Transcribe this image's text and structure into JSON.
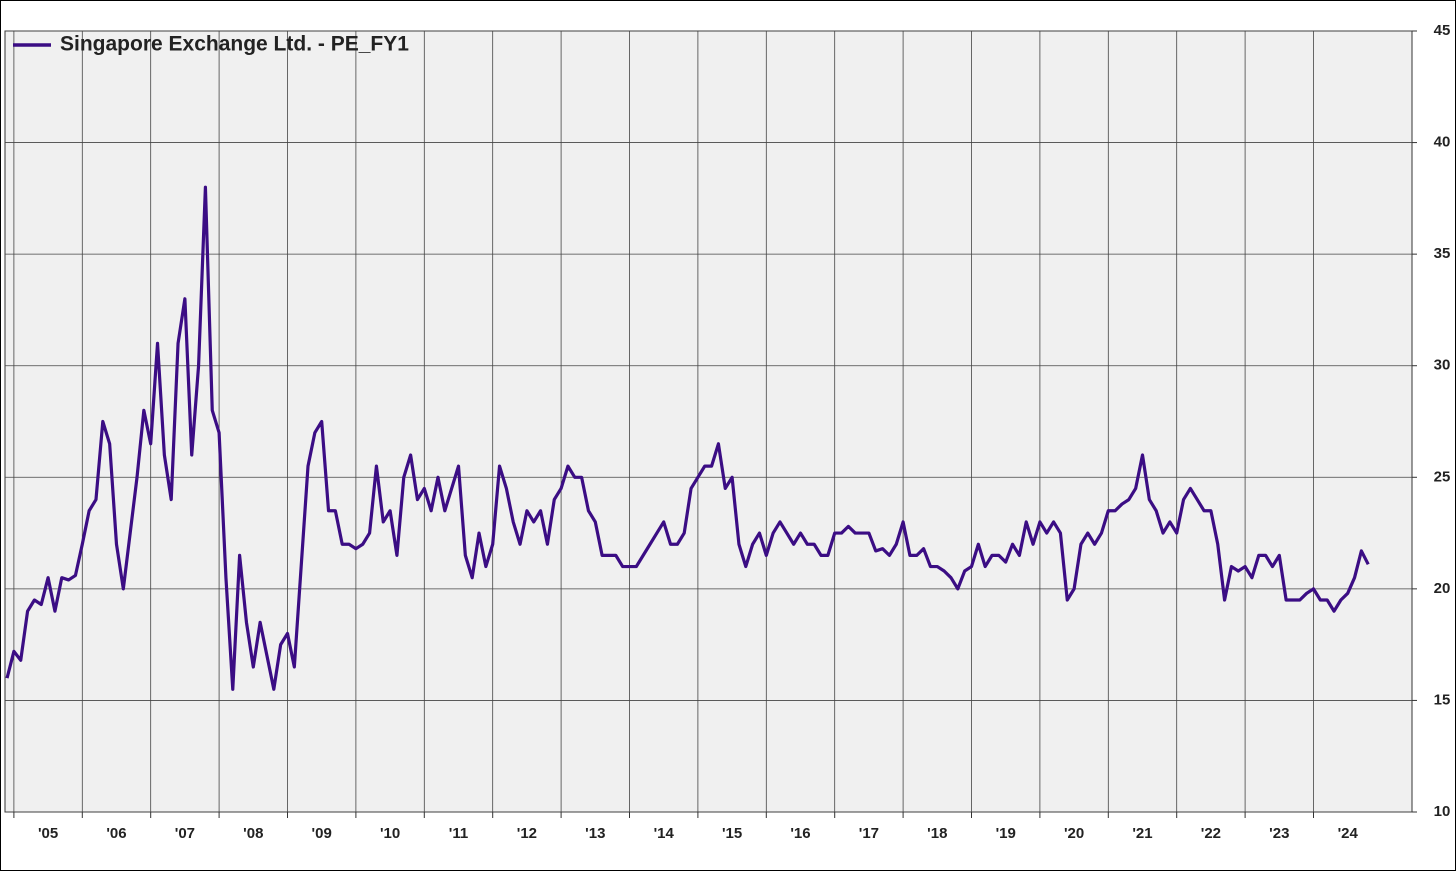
{
  "chart_data": {
    "type": "line",
    "legend": "top-left",
    "grid": true,
    "y_axis_side": "right",
    "xlim": [
      2004.87,
      2025.44
    ],
    "ylim": [
      10,
      45
    ],
    "yticks": [
      10,
      15,
      20,
      25,
      30,
      35,
      40,
      45
    ],
    "xticks": [
      {
        "value": 2005,
        "label": "'05"
      },
      {
        "value": 2006,
        "label": "'06"
      },
      {
        "value": 2007,
        "label": "'07"
      },
      {
        "value": 2008,
        "label": "'08"
      },
      {
        "value": 2009,
        "label": "'09"
      },
      {
        "value": 2010,
        "label": "'10"
      },
      {
        "value": 2011,
        "label": "'11"
      },
      {
        "value": 2012,
        "label": "'12"
      },
      {
        "value": 2013,
        "label": "'13"
      },
      {
        "value": 2014,
        "label": "'14"
      },
      {
        "value": 2015,
        "label": "'15"
      },
      {
        "value": 2016,
        "label": "'16"
      },
      {
        "value": 2017,
        "label": "'17"
      },
      {
        "value": 2018,
        "label": "'18"
      },
      {
        "value": 2019,
        "label": "'19"
      },
      {
        "value": 2020,
        "label": "'20"
      },
      {
        "value": 2021,
        "label": "'21"
      },
      {
        "value": 2022,
        "label": "'22"
      },
      {
        "value": 2023,
        "label": "'23"
      },
      {
        "value": 2024,
        "label": "'24"
      }
    ],
    "x": [
      2004.9,
      2005.0,
      2005.1,
      2005.2,
      2005.3,
      2005.4,
      2005.5,
      2005.6,
      2005.7,
      2005.8,
      2005.9,
      2006.0,
      2006.1,
      2006.2,
      2006.3,
      2006.4,
      2006.5,
      2006.6,
      2006.7,
      2006.8,
      2006.9,
      2007.0,
      2007.1,
      2007.2,
      2007.3,
      2007.4,
      2007.5,
      2007.6,
      2007.7,
      2007.8,
      2007.9,
      2008.0,
      2008.1,
      2008.2,
      2008.3,
      2008.4,
      2008.5,
      2008.6,
      2008.7,
      2008.8,
      2008.9,
      2009.0,
      2009.1,
      2009.2,
      2009.3,
      2009.4,
      2009.5,
      2009.6,
      2009.7,
      2009.8,
      2009.9,
      2010.0,
      2010.1,
      2010.2,
      2010.3,
      2010.4,
      2010.5,
      2010.6,
      2010.7,
      2010.8,
      2010.9,
      2011.0,
      2011.1,
      2011.2,
      2011.3,
      2011.4,
      2011.5,
      2011.6,
      2011.7,
      2011.8,
      2011.9,
      2012.0,
      2012.1,
      2012.2,
      2012.3,
      2012.4,
      2012.5,
      2012.6,
      2012.7,
      2012.8,
      2012.9,
      2013.0,
      2013.1,
      2013.2,
      2013.3,
      2013.4,
      2013.5,
      2013.6,
      2013.7,
      2013.8,
      2013.9,
      2014.0,
      2014.1,
      2014.2,
      2014.3,
      2014.4,
      2014.5,
      2014.6,
      2014.7,
      2014.8,
      2014.9,
      2015.0,
      2015.1,
      2015.2,
      2015.3,
      2015.4,
      2015.5,
      2015.6,
      2015.7,
      2015.8,
      2015.9,
      2016.0,
      2016.1,
      2016.2,
      2016.3,
      2016.4,
      2016.5,
      2016.6,
      2016.7,
      2016.8,
      2016.9,
      2017.0,
      2017.1,
      2017.2,
      2017.3,
      2017.4,
      2017.5,
      2017.6,
      2017.7,
      2017.8,
      2017.9,
      2018.0,
      2018.1,
      2018.2,
      2018.3,
      2018.4,
      2018.5,
      2018.6,
      2018.7,
      2018.8,
      2018.9,
      2019.0,
      2019.1,
      2019.2,
      2019.3,
      2019.4,
      2019.5,
      2019.6,
      2019.7,
      2019.8,
      2019.9,
      2020.0,
      2020.1,
      2020.2,
      2020.3,
      2020.4,
      2020.5,
      2020.6,
      2020.7,
      2020.8,
      2020.9,
      2021.0,
      2021.1,
      2021.2,
      2021.3,
      2021.4,
      2021.5,
      2021.6,
      2021.7,
      2021.8,
      2021.9,
      2022.0,
      2022.1,
      2022.2,
      2022.3,
      2022.4,
      2022.5,
      2022.6,
      2022.7,
      2022.8,
      2022.9,
      2023.0,
      2023.1,
      2023.2,
      2023.3,
      2023.4,
      2023.5,
      2023.6,
      2023.7,
      2023.8,
      2023.9,
      2024.0,
      2024.1,
      2024.2,
      2024.3,
      2024.4,
      2024.5,
      2024.6,
      2024.7,
      2024.8
    ],
    "series": [
      {
        "name": "Singapore Exchange Ltd. - PE_FY1",
        "color": "#3b0d84",
        "values": [
          16.0,
          17.2,
          16.8,
          19.0,
          19.5,
          19.3,
          20.5,
          19.0,
          20.5,
          20.4,
          20.6,
          22.0,
          23.5,
          24.0,
          27.5,
          26.5,
          22.0,
          20.0,
          22.5,
          25.0,
          28.0,
          26.5,
          31.0,
          26.0,
          24.0,
          31.0,
          33.0,
          26.0,
          30.0,
          38.0,
          28.0,
          27.0,
          20.5,
          15.5,
          21.5,
          18.5,
          16.5,
          18.5,
          17.0,
          15.5,
          17.5,
          18.0,
          16.5,
          21.0,
          25.5,
          27.0,
          27.5,
          23.5,
          23.5,
          22.0,
          22.0,
          21.8,
          22.0,
          22.5,
          25.5,
          23.0,
          23.5,
          21.5,
          25.0,
          26.0,
          24.0,
          24.5,
          23.5,
          25.0,
          23.5,
          24.5,
          25.5,
          21.5,
          20.5,
          22.5,
          21.0,
          22.0,
          25.5,
          24.5,
          23.0,
          22.0,
          23.5,
          23.0,
          23.5,
          22.0,
          24.0,
          24.5,
          25.5,
          25.0,
          25.0,
          23.5,
          23.0,
          21.5,
          21.5,
          21.5,
          21.0,
          21.0,
          21.0,
          21.5,
          22.0,
          22.5,
          23.0,
          22.0,
          22.0,
          22.5,
          24.5,
          25.0,
          25.5,
          25.5,
          26.5,
          24.5,
          25.0,
          22.0,
          21.0,
          22.0,
          22.5,
          21.5,
          22.5,
          23.0,
          22.5,
          22.0,
          22.5,
          22.0,
          22.0,
          21.5,
          21.5,
          22.5,
          22.5,
          22.8,
          22.5,
          22.5,
          22.5,
          21.7,
          21.8,
          21.5,
          22.0,
          23.0,
          21.5,
          21.5,
          21.8,
          21.0,
          21.0,
          20.8,
          20.5,
          20.0,
          20.8,
          21.0,
          22.0,
          21.0,
          21.5,
          21.5,
          21.2,
          22.0,
          21.5,
          23.0,
          22.0,
          23.0,
          22.5,
          23.0,
          22.5,
          19.5,
          20.0,
          22.0,
          22.5,
          22.0,
          22.5,
          23.5,
          23.5,
          23.8,
          24.0,
          24.5,
          26.0,
          24.0,
          23.5,
          22.5,
          23.0,
          22.5,
          24.0,
          24.5,
          24.0,
          23.5,
          23.5,
          22.0,
          19.5,
          21.0,
          20.8,
          21.0,
          20.5,
          21.5,
          21.5,
          21.0,
          21.5,
          19.5,
          19.5,
          19.5,
          19.8,
          20.0,
          19.5,
          19.5,
          19.0,
          19.5,
          19.8,
          20.5,
          21.7,
          21.1
        ]
      }
    ]
  }
}
